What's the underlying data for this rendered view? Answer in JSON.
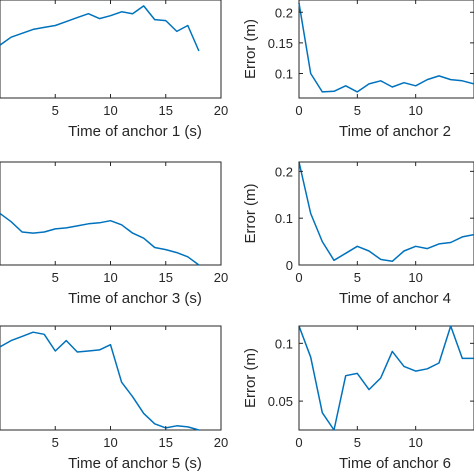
{
  "line_color": "#0072BD",
  "chart_data": [
    {
      "type": "line",
      "xlabel": "Time of anchor 1 (s)",
      "ylabel": "",
      "xlim": [
        0,
        20
      ],
      "ylim": [
        0,
        1
      ],
      "xticks": [
        5,
        10,
        15,
        20
      ],
      "yticks": [],
      "grid": false,
      "x": [
        0,
        1,
        2,
        3,
        4,
        5,
        6,
        7,
        8,
        9,
        10,
        11,
        12,
        13,
        14,
        15,
        16,
        17,
        18
      ],
      "y": [
        0.54,
        0.62,
        0.66,
        0.7,
        0.72,
        0.74,
        0.78,
        0.82,
        0.86,
        0.81,
        0.84,
        0.88,
        0.86,
        0.94,
        0.8,
        0.79,
        0.68,
        0.74,
        0.48
      ]
    },
    {
      "type": "line",
      "xlabel": "Time of anchor 2",
      "ylabel": "Error (m)",
      "xlim": [
        0,
        15
      ],
      "ylim": [
        0.06,
        0.22
      ],
      "xticks": [
        0,
        5,
        10
      ],
      "yticks": [
        0.1,
        0.15,
        0.2
      ],
      "grid": false,
      "x": [
        0,
        1,
        2,
        3,
        4,
        5,
        6,
        7,
        8,
        9,
        10,
        11,
        12,
        13,
        14,
        15
      ],
      "y": [
        0.215,
        0.1,
        0.07,
        0.071,
        0.08,
        0.07,
        0.083,
        0.088,
        0.078,
        0.085,
        0.08,
        0.09,
        0.096,
        0.09,
        0.088,
        0.083
      ]
    },
    {
      "type": "line",
      "xlabel": "Time of anchor 3 (s)",
      "ylabel": "",
      "xlim": [
        0,
        20
      ],
      "ylim": [
        0,
        1
      ],
      "xticks": [
        5,
        10,
        15,
        20
      ],
      "yticks": [],
      "grid": false,
      "x": [
        0,
        1,
        2,
        3,
        4,
        5,
        6,
        7,
        8,
        9,
        10,
        11,
        12,
        13,
        14,
        15,
        16,
        17,
        18
      ],
      "y": [
        0.5,
        0.42,
        0.32,
        0.31,
        0.32,
        0.35,
        0.36,
        0.38,
        0.4,
        0.41,
        0.43,
        0.39,
        0.31,
        0.26,
        0.17,
        0.15,
        0.12,
        0.08,
        0.0
      ]
    },
    {
      "type": "line",
      "xlabel": "Time of anchor 4",
      "ylabel": "Error (m)",
      "xlim": [
        0,
        15
      ],
      "ylim": [
        0,
        0.22
      ],
      "xticks": [
        0,
        5,
        10
      ],
      "yticks": [
        0,
        0.1,
        0.2
      ],
      "grid": false,
      "x": [
        0,
        1,
        2,
        3,
        4,
        5,
        6,
        7,
        8,
        9,
        10,
        11,
        12,
        13,
        14,
        15
      ],
      "y": [
        0.22,
        0.11,
        0.05,
        0.01,
        0.025,
        0.04,
        0.03,
        0.012,
        0.008,
        0.03,
        0.04,
        0.035,
        0.045,
        0.048,
        0.06,
        0.065
      ]
    },
    {
      "type": "line",
      "xlabel": "Time of anchor 5 (s)",
      "ylabel": "",
      "xlim": [
        0,
        20
      ],
      "ylim": [
        0,
        1
      ],
      "xticks": [
        5,
        10,
        15,
        20
      ],
      "yticks": [],
      "grid": false,
      "x": [
        0,
        1,
        2,
        3,
        4,
        5,
        6,
        7,
        8,
        9,
        10,
        11,
        12,
        13,
        14,
        15,
        16,
        17,
        18
      ],
      "y": [
        0.8,
        0.86,
        0.9,
        0.94,
        0.92,
        0.76,
        0.86,
        0.75,
        0.76,
        0.77,
        0.82,
        0.46,
        0.32,
        0.16,
        0.06,
        0.02,
        0.04,
        0.03,
        0.0
      ]
    },
    {
      "type": "line",
      "xlabel": "Time of anchor 6",
      "ylabel": "Error (m)",
      "xlim": [
        0,
        15
      ],
      "ylim": [
        0.025,
        0.115
      ],
      "xticks": [
        0,
        5,
        10
      ],
      "yticks": [
        0.05,
        0.1
      ],
      "grid": false,
      "x": [
        0,
        1,
        2,
        3,
        4,
        5,
        6,
        7,
        8,
        9,
        10,
        11,
        12,
        13,
        14,
        15
      ],
      "y": [
        0.115,
        0.088,
        0.04,
        0.025,
        0.072,
        0.074,
        0.06,
        0.07,
        0.093,
        0.08,
        0.076,
        0.078,
        0.083,
        0.115,
        0.087,
        0.087
      ]
    }
  ]
}
